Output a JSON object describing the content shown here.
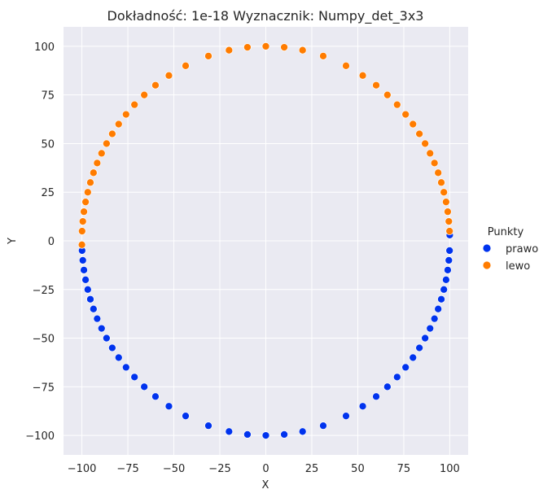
{
  "chart_data": {
    "type": "scatter",
    "title": "Dokładność: 1e-18  Wyznacznik: Numpy_det_3x3",
    "xlabel": "X",
    "ylabel": "Y",
    "xlim": [
      -110,
      110
    ],
    "ylim": [
      -110,
      110
    ],
    "xticks": [
      -100,
      -75,
      -50,
      -25,
      0,
      25,
      50,
      75,
      100
    ],
    "yticks": [
      -100,
      -75,
      -50,
      -25,
      0,
      25,
      50,
      75,
      100
    ],
    "xtick_labels": [
      "−100",
      "−75",
      "−50",
      "−25",
      "0",
      "25",
      "50",
      "75",
      "100"
    ],
    "ytick_labels": [
      "−100",
      "−75",
      "−50",
      "−25",
      "0",
      "25",
      "50",
      "75",
      "100"
    ],
    "grid": true,
    "legend": {
      "title": "Punkty",
      "placement": "right",
      "entries": [
        "prawo",
        "lewo"
      ]
    },
    "series": [
      {
        "name": "prawo",
        "color": "#0033ee",
        "description_of_shape": "lower half of a circle of radius 100 centred at the origin",
        "points": [
          [
            100.0,
            3.0
          ],
          [
            99.9,
            -5.0
          ],
          [
            99.5,
            -10.0
          ],
          [
            98.9,
            -15.0
          ],
          [
            98.0,
            -20.0
          ],
          [
            96.8,
            -25.0
          ],
          [
            95.4,
            -30.0
          ],
          [
            93.7,
            -35.0
          ],
          [
            91.7,
            -40.0
          ],
          [
            89.3,
            -45.0
          ],
          [
            86.6,
            -50.0
          ],
          [
            83.5,
            -55.0
          ],
          [
            80.0,
            -60.0
          ],
          [
            76.0,
            -65.0
          ],
          [
            71.4,
            -70.0
          ],
          [
            66.1,
            -75.0
          ],
          [
            60.0,
            -80.0
          ],
          [
            52.7,
            -85.0
          ],
          [
            43.6,
            -90.0
          ],
          [
            31.2,
            -95.0
          ],
          [
            20.0,
            -98.0
          ],
          [
            10.0,
            -99.5
          ],
          [
            0.0,
            -100.0
          ],
          [
            -10.0,
            -99.5
          ],
          [
            -20.0,
            -98.0
          ],
          [
            -31.2,
            -95.0
          ],
          [
            -43.6,
            -90.0
          ],
          [
            -52.7,
            -85.0
          ],
          [
            -60.0,
            -80.0
          ],
          [
            -66.1,
            -75.0
          ],
          [
            -71.4,
            -70.0
          ],
          [
            -76.0,
            -65.0
          ],
          [
            -80.0,
            -60.0
          ],
          [
            -83.5,
            -55.0
          ],
          [
            -86.6,
            -50.0
          ],
          [
            -89.3,
            -45.0
          ],
          [
            -91.7,
            -40.0
          ],
          [
            -93.7,
            -35.0
          ],
          [
            -95.4,
            -30.0
          ],
          [
            -96.8,
            -25.0
          ],
          [
            -98.0,
            -20.0
          ],
          [
            -98.9,
            -15.0
          ],
          [
            -99.5,
            -10.0
          ],
          [
            -99.9,
            -5.0
          ]
        ]
      },
      {
        "name": "lewo",
        "color": "#ff7c00",
        "description_of_shape": "upper half of a circle of radius 100 centred at the origin",
        "points": [
          [
            -100.0,
            -2.0
          ],
          [
            -99.9,
            5.0
          ],
          [
            -99.5,
            10.0
          ],
          [
            -98.9,
            15.0
          ],
          [
            -98.0,
            20.0
          ],
          [
            -96.8,
            25.0
          ],
          [
            -95.4,
            30.0
          ],
          [
            -93.7,
            35.0
          ],
          [
            -91.7,
            40.0
          ],
          [
            -89.3,
            45.0
          ],
          [
            -86.6,
            50.0
          ],
          [
            -83.5,
            55.0
          ],
          [
            -80.0,
            60.0
          ],
          [
            -76.0,
            65.0
          ],
          [
            -71.4,
            70.0
          ],
          [
            -66.1,
            75.0
          ],
          [
            -60.0,
            80.0
          ],
          [
            -52.7,
            85.0
          ],
          [
            -43.6,
            90.0
          ],
          [
            -31.2,
            95.0
          ],
          [
            -20.0,
            98.0
          ],
          [
            -10.0,
            99.5
          ],
          [
            0.0,
            100.0
          ],
          [
            10.0,
            99.5
          ],
          [
            20.0,
            98.0
          ],
          [
            31.2,
            95.0
          ],
          [
            43.6,
            90.0
          ],
          [
            52.7,
            85.0
          ],
          [
            60.0,
            80.0
          ],
          [
            66.1,
            75.0
          ],
          [
            71.4,
            70.0
          ],
          [
            76.0,
            65.0
          ],
          [
            80.0,
            60.0
          ],
          [
            83.5,
            55.0
          ],
          [
            86.6,
            50.0
          ],
          [
            89.3,
            45.0
          ],
          [
            91.7,
            40.0
          ],
          [
            93.7,
            35.0
          ],
          [
            95.4,
            30.0
          ],
          [
            96.8,
            25.0
          ],
          [
            98.0,
            20.0
          ],
          [
            98.9,
            15.0
          ],
          [
            99.5,
            10.0
          ],
          [
            99.9,
            5.0
          ]
        ]
      }
    ]
  }
}
